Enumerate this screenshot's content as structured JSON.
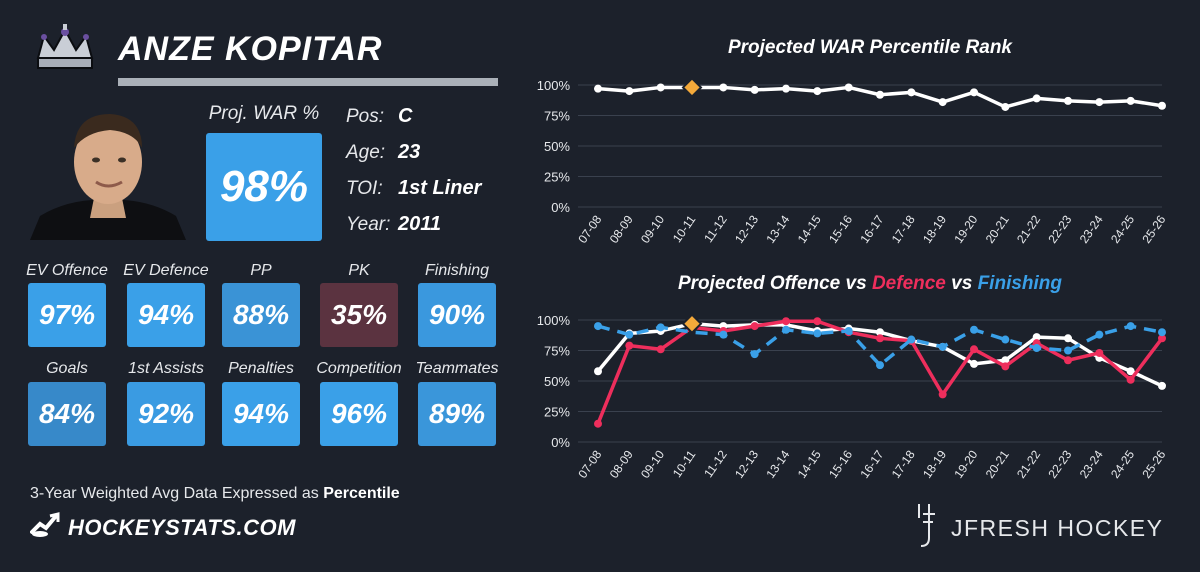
{
  "player": {
    "name": "ANZE KOPITAR",
    "proj_war_label": "Proj. WAR %",
    "proj_war_value": "98%",
    "info": [
      {
        "label": "Pos:",
        "value": "C"
      },
      {
        "label": "Age:",
        "value": "23"
      },
      {
        "label": "TOI:",
        "value": "1st Liner"
      },
      {
        "label": "Year:",
        "value": "2011"
      }
    ]
  },
  "tiles_row1": [
    {
      "label": "EV Offence",
      "value": "97%",
      "color": "#3aa0e8"
    },
    {
      "label": "EV Defence",
      "value": "94%",
      "color": "#3aa0e8"
    },
    {
      "label": "PP",
      "value": "88%",
      "color": "#3a93d6"
    },
    {
      "label": "PK",
      "value": "35%",
      "color": "#5b3340"
    },
    {
      "label": "Finishing",
      "value": "90%",
      "color": "#3a98de"
    }
  ],
  "tiles_row2": [
    {
      "label": "Goals",
      "value": "84%",
      "color": "#3789c9"
    },
    {
      "label": "1st Assists",
      "value": "92%",
      "color": "#3a9be2"
    },
    {
      "label": "Penalties",
      "value": "94%",
      "color": "#3aa0e8"
    },
    {
      "label": "Competition",
      "value": "96%",
      "color": "#3aa0e8"
    },
    {
      "label": "Teammates",
      "value": "89%",
      "color": "#3a96da"
    }
  ],
  "footer": {
    "note_prefix": "3-Year Weighted Avg Data Expressed as ",
    "note_bold": "Percentile",
    "brand_left": "HOCKEYSTATS.COM",
    "brand_right": "JFRESH HOCKEY"
  },
  "chart_titles": {
    "war": "Projected WAR Percentile Rank",
    "ovd_part1": "Projected Offence",
    "ovd_vs1": " vs ",
    "ovd_part2": "Defence",
    "ovd_vs2": " vs ",
    "ovd_part3": "Finishing"
  },
  "colors": {
    "background": "#1c212b",
    "offence": "#ffffff",
    "defence": "#ee2e5c",
    "finishing": "#3aa0e8",
    "highlight": "#f4a93a"
  },
  "chart_data": [
    {
      "type": "line",
      "title": "Projected WAR Percentile Rank",
      "categories": [
        "07-08",
        "08-09",
        "09-10",
        "10-11",
        "11-12",
        "12-13",
        "13-14",
        "14-15",
        "15-16",
        "16-17",
        "17-18",
        "18-19",
        "19-20",
        "20-21",
        "21-22",
        "22-23",
        "23-24",
        "24-25",
        "25-26"
      ],
      "yticks": [
        "100%",
        "75%",
        "50%",
        "25%",
        "0%"
      ],
      "ylim": [
        0,
        100
      ],
      "grid": true,
      "highlight_index": 3,
      "series": [
        {
          "values": [
            97,
            95,
            98,
            98,
            98,
            96,
            97,
            95,
            98,
            92,
            94,
            86,
            94,
            82,
            89,
            87,
            86,
            87,
            83
          ]
        }
      ]
    },
    {
      "type": "line",
      "title": "Projected Offence vs Defence vs Finishing",
      "categories": [
        "07-08",
        "08-09",
        "09-10",
        "10-11",
        "11-12",
        "12-13",
        "13-14",
        "14-15",
        "15-16",
        "16-17",
        "17-18",
        "18-19",
        "19-20",
        "20-21",
        "21-22",
        "22-23",
        "23-24",
        "24-25",
        "25-26"
      ],
      "yticks": [
        "100%",
        "75%",
        "50%",
        "25%",
        "0%"
      ],
      "ylim": [
        0,
        100
      ],
      "grid": true,
      "highlight_index": 3,
      "series": [
        {
          "name": "Offence",
          "values": [
            58,
            89,
            91,
            97,
            95,
            96,
            96,
            91,
            93,
            90,
            83,
            78,
            64,
            67,
            86,
            85,
            69,
            58,
            46
          ]
        },
        {
          "name": "Defence",
          "values": [
            15,
            79,
            76,
            94,
            91,
            95,
            99,
            99,
            90,
            85,
            83,
            39,
            76,
            62,
            81,
            67,
            73,
            51,
            85
          ]
        },
        {
          "name": "Finishing",
          "values": [
            95,
            88,
            94,
            90,
            88,
            72,
            92,
            89,
            91,
            63,
            84,
            78,
            92,
            84,
            77,
            75,
            88,
            95,
            90
          ]
        }
      ]
    }
  ]
}
